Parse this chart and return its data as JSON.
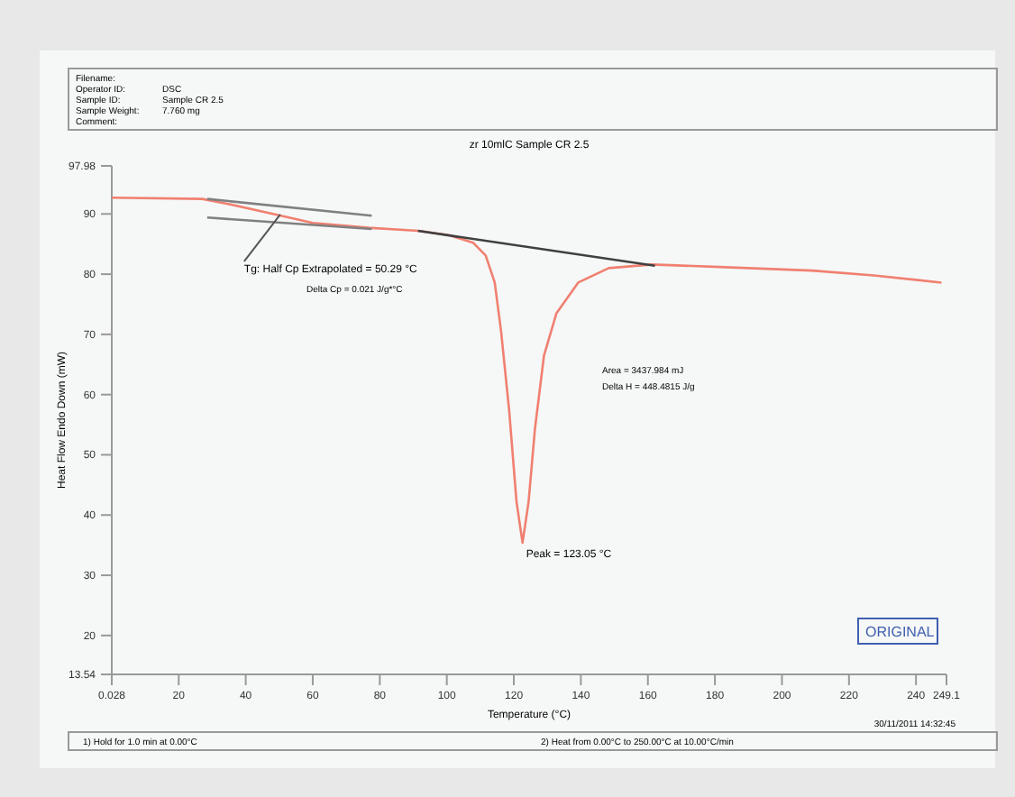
{
  "chart_data": {
    "type": "line",
    "title": "zr 10mlC Sample CR 2.5",
    "xlabel": "Temperature (°C)",
    "ylabel": "Heat Flow Endo Down (mW)",
    "xlim": [
      0.028,
      249.1
    ],
    "xticks": [
      0.028,
      20,
      40,
      60,
      80,
      100,
      120,
      140,
      160,
      180,
      200,
      220,
      240,
      249.1
    ],
    "ylim": [
      13.54,
      97.98
    ],
    "yticks": [
      {
        "value": 13.54,
        "label": "13.54"
      },
      20,
      30,
      40,
      50,
      60,
      70,
      80,
      90,
      {
        "value": 97.98,
        "label": "97.98"
      }
    ],
    "grid": false,
    "series": [
      {
        "color": "#f08070",
        "x": [
          0.028,
          27,
          34.4,
          49,
          60,
          76.7,
          91.4,
          100.6,
          107.9,
          111.6,
          114.3,
          116.2,
          118.6,
          120.8,
          122.6,
          124.4,
          126.3,
          129,
          132.7,
          139.2,
          148.3,
          161.2,
          181.4,
          209,
          227.4,
          247.6
        ],
        "values": [
          92.7,
          92.5,
          91.7,
          89.9,
          88.5,
          87.7,
          87.2,
          86.5,
          85.2,
          83.1,
          78.6,
          70.5,
          57.4,
          42.2,
          35.4,
          42.2,
          54.3,
          66.5,
          73.5,
          78.6,
          81,
          81.6,
          81.2,
          80.6,
          79.8,
          78.6
        ]
      },
      {
        "color": "#404040",
        "x": [
          91.4,
          162.1
        ],
        "values": [
          87.2,
          81.4
        ]
      },
      {
        "color": "#808080",
        "x": [
          28.5,
          77.6
        ],
        "values": [
          92.5,
          89.7
        ]
      },
      {
        "color": "#808080",
        "x": [
          28.5,
          77.6
        ],
        "values": [
          89.4,
          87.5
        ]
      }
    ],
    "annotations": [
      {
        "text": "Tg: Half Cp Extrapolated = 50.29 °C",
        "x": 50.29,
        "y": 89.9
      },
      "Delta Cp = 0.021 J/g*°C",
      "Area = 3437.984 mJ",
      "Delta H = 448.4815 J/g",
      {
        "text": "Peak = 123.05 °C",
        "x": 122.6,
        "y": 35.4
      },
      "Filename:",
      "Operator ID:",
      "Sample ID:",
      "Sample Weight:",
      "Comment:",
      "DSC",
      "Sample CR 2.5",
      "7.760 mg",
      "1) Hold for 1.0 min at 0.00°C",
      "2) Heat from 0.00°C to 250.00°C at 10.00°C/min",
      "30/11/2011 14:32:45",
      "ORIGINAL"
    ]
  }
}
